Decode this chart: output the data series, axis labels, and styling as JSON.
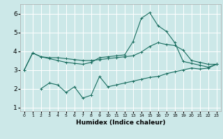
{
  "title": "",
  "xlabel": "Humidex (Indice chaleur)",
  "background_color": "#cce8e8",
  "grid_color": "#ffffff",
  "line_color": "#1a6e60",
  "xlim": [
    -0.5,
    23.5
  ],
  "ylim": [
    0.8,
    6.5
  ],
  "xticks": [
    0,
    1,
    2,
    3,
    4,
    5,
    6,
    7,
    8,
    9,
    10,
    11,
    12,
    13,
    14,
    15,
    16,
    17,
    18,
    19,
    20,
    21,
    22,
    23
  ],
  "yticks": [
    1,
    2,
    3,
    4,
    5,
    6
  ],
  "line1_x": [
    0,
    1,
    2,
    3,
    4,
    5,
    6,
    7,
    8,
    9,
    10,
    11,
    12,
    13,
    14,
    15,
    16,
    17,
    18,
    19,
    20,
    21,
    22,
    23
  ],
  "line1_y": [
    3.0,
    3.9,
    3.7,
    3.65,
    3.65,
    3.6,
    3.55,
    3.5,
    3.5,
    3.55,
    3.6,
    3.65,
    3.7,
    3.75,
    3.95,
    4.25,
    4.45,
    4.35,
    4.3,
    4.05,
    3.5,
    3.4,
    3.3,
    3.3
  ],
  "line2_x": [
    0,
    1,
    2,
    3,
    4,
    5,
    6,
    7,
    8,
    9,
    10,
    11,
    12,
    13,
    14,
    15,
    16,
    17,
    18,
    19,
    20,
    21,
    22,
    23
  ],
  "line2_y": [
    3.0,
    3.9,
    3.7,
    3.6,
    3.5,
    3.4,
    3.35,
    3.3,
    3.4,
    3.65,
    3.7,
    3.75,
    3.8,
    4.5,
    5.75,
    6.05,
    5.35,
    5.05,
    4.45,
    3.45,
    3.35,
    3.25,
    3.15,
    3.3
  ],
  "line3_x": [
    2,
    3,
    4,
    5,
    6,
    7,
    8,
    9,
    10,
    11,
    12,
    13,
    14,
    15,
    16,
    17,
    18,
    19,
    20,
    21,
    22,
    23
  ],
  "line3_y": [
    2.0,
    2.3,
    2.2,
    1.8,
    2.1,
    1.5,
    1.65,
    2.65,
    2.1,
    2.2,
    2.3,
    2.4,
    2.5,
    2.6,
    2.65,
    2.8,
    2.9,
    3.0,
    3.1,
    3.05,
    3.1,
    3.3
  ],
  "marker_size": 2.5,
  "lw": 0.8
}
